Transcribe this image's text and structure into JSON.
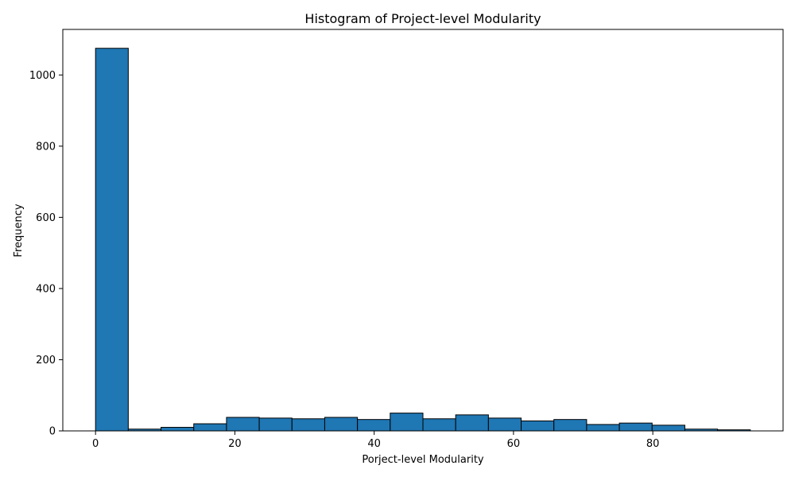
{
  "chart_data": {
    "type": "bar",
    "title": "Histogram of Project-level Modularity",
    "xlabel": "Porject-level Modularity",
    "ylabel": "Frequency",
    "bin_edges": [
      0,
      4.7,
      9.4,
      14.1,
      18.8,
      23.5,
      28.2,
      32.9,
      37.6,
      42.3,
      47.0,
      51.7,
      56.4,
      61.1,
      65.8,
      70.5,
      75.2,
      79.9,
      84.6,
      89.3,
      94.0
    ],
    "values": [
      1075,
      5,
      10,
      20,
      38,
      36,
      34,
      38,
      32,
      50,
      34,
      45,
      36,
      28,
      32,
      18,
      22,
      16,
      5,
      3
    ],
    "xlim": [
      -4.7,
      98.7
    ],
    "ylim": [
      0,
      1128
    ],
    "xticks": [
      0,
      20,
      40,
      60,
      80
    ],
    "yticks": [
      0,
      200,
      400,
      600,
      800,
      1000
    ],
    "bar_color": "#1f77b4",
    "edge_color": "#000000",
    "grid": false
  }
}
